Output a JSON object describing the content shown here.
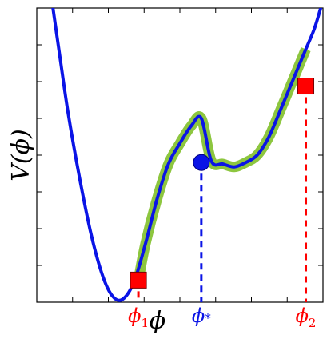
{
  "chart_data": {
    "type": "line",
    "ylabel": "V(ϕ)",
    "xlabel": "ϕ",
    "x_range": [
      0,
      1
    ],
    "y_range": [
      0,
      1
    ],
    "grid": false,
    "series": [
      {
        "role": "potential",
        "color": "#0a14e6",
        "x": [
          0.055,
          0.08,
          0.11,
          0.15,
          0.19,
          0.23,
          0.265,
          0.3,
          0.34,
          0.38,
          0.42,
          0.46,
          0.5,
          0.54,
          0.575,
          0.61,
          0.65,
          0.69,
          0.73,
          0.77,
          0.81,
          0.85,
          0.88,
          0.91,
          0.94,
          0.97,
          0.995
        ],
        "y": [
          1.01,
          0.84,
          0.64,
          0.42,
          0.23,
          0.09,
          0.02,
          0.01,
          0.07,
          0.2,
          0.35,
          0.47,
          0.54,
          0.6,
          0.625,
          0.48,
          0.47,
          0.46,
          0.475,
          0.5,
          0.56,
          0.65,
          0.72,
          0.79,
          0.86,
          0.93,
          1.01
        ]
      },
      {
        "role": "highlighted-path",
        "color": "#8dc63f",
        "x": [
          0.355,
          0.38,
          0.42,
          0.46,
          0.5,
          0.54,
          0.575,
          0.61,
          0.65,
          0.69,
          0.73,
          0.77,
          0.81,
          0.85,
          0.88,
          0.91,
          0.94
        ],
        "y": [
          0.075,
          0.2,
          0.35,
          0.47,
          0.54,
          0.6,
          0.625,
          0.48,
          0.47,
          0.46,
          0.475,
          0.5,
          0.56,
          0.65,
          0.72,
          0.79,
          0.86
        ]
      }
    ],
    "markers": [
      {
        "label": "ϕ",
        "subscript": "1",
        "x": 0.355,
        "y": 0.075,
        "shape": "square",
        "color": "#ff0000",
        "line_color": "#ff0000"
      },
      {
        "label": "ϕ",
        "subscript": "*",
        "x": 0.575,
        "y": 0.475,
        "shape": "circle",
        "color": "#0a14e6",
        "line_color": "#0a14e6"
      },
      {
        "label": "ϕ",
        "subscript": "2",
        "x": 0.94,
        "y": 0.735,
        "shape": "square",
        "color": "#ff0000",
        "line_color": "#ff0000"
      }
    ],
    "x_ticks": [
      0.125,
      0.25,
      0.375,
      0.5,
      0.625,
      0.75,
      0.875
    ],
    "y_ticks": [
      0.125,
      0.25,
      0.375,
      0.5,
      0.625,
      0.75,
      0.875
    ]
  }
}
